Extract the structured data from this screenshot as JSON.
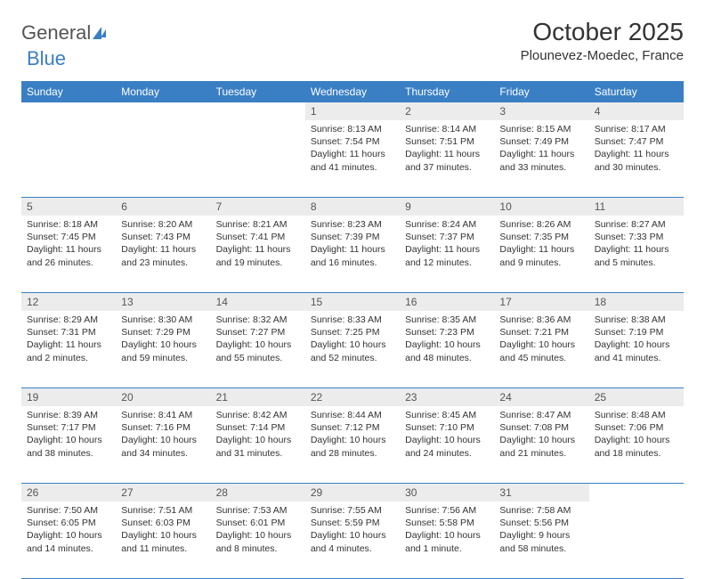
{
  "brand": {
    "part1": "General",
    "part2": "Blue"
  },
  "title": "October 2025",
  "location": "Plounevez-Moedec, France",
  "weekdays": [
    "Sunday",
    "Monday",
    "Tuesday",
    "Wednesday",
    "Thursday",
    "Friday",
    "Saturday"
  ],
  "colors": {
    "header_bg": "#3a7fc4",
    "header_text": "#ffffff",
    "daynum_bg": "#ececec",
    "border": "#3a7fc4",
    "body_text": "#333333"
  },
  "weeks": [
    {
      "daynums": [
        "",
        "",
        "",
        "1",
        "2",
        "3",
        "4"
      ],
      "cells": [
        {
          "sunrise": "",
          "sunset": "",
          "daylight": ""
        },
        {
          "sunrise": "",
          "sunset": "",
          "daylight": ""
        },
        {
          "sunrise": "",
          "sunset": "",
          "daylight": ""
        },
        {
          "sunrise": "Sunrise: 8:13 AM",
          "sunset": "Sunset: 7:54 PM",
          "daylight": "Daylight: 11 hours and 41 minutes."
        },
        {
          "sunrise": "Sunrise: 8:14 AM",
          "sunset": "Sunset: 7:51 PM",
          "daylight": "Daylight: 11 hours and 37 minutes."
        },
        {
          "sunrise": "Sunrise: 8:15 AM",
          "sunset": "Sunset: 7:49 PM",
          "daylight": "Daylight: 11 hours and 33 minutes."
        },
        {
          "sunrise": "Sunrise: 8:17 AM",
          "sunset": "Sunset: 7:47 PM",
          "daylight": "Daylight: 11 hours and 30 minutes."
        }
      ]
    },
    {
      "daynums": [
        "5",
        "6",
        "7",
        "8",
        "9",
        "10",
        "11"
      ],
      "cells": [
        {
          "sunrise": "Sunrise: 8:18 AM",
          "sunset": "Sunset: 7:45 PM",
          "daylight": "Daylight: 11 hours and 26 minutes."
        },
        {
          "sunrise": "Sunrise: 8:20 AM",
          "sunset": "Sunset: 7:43 PM",
          "daylight": "Daylight: 11 hours and 23 minutes."
        },
        {
          "sunrise": "Sunrise: 8:21 AM",
          "sunset": "Sunset: 7:41 PM",
          "daylight": "Daylight: 11 hours and 19 minutes."
        },
        {
          "sunrise": "Sunrise: 8:23 AM",
          "sunset": "Sunset: 7:39 PM",
          "daylight": "Daylight: 11 hours and 16 minutes."
        },
        {
          "sunrise": "Sunrise: 8:24 AM",
          "sunset": "Sunset: 7:37 PM",
          "daylight": "Daylight: 11 hours and 12 minutes."
        },
        {
          "sunrise": "Sunrise: 8:26 AM",
          "sunset": "Sunset: 7:35 PM",
          "daylight": "Daylight: 11 hours and 9 minutes."
        },
        {
          "sunrise": "Sunrise: 8:27 AM",
          "sunset": "Sunset: 7:33 PM",
          "daylight": "Daylight: 11 hours and 5 minutes."
        }
      ]
    },
    {
      "daynums": [
        "12",
        "13",
        "14",
        "15",
        "16",
        "17",
        "18"
      ],
      "cells": [
        {
          "sunrise": "Sunrise: 8:29 AM",
          "sunset": "Sunset: 7:31 PM",
          "daylight": "Daylight: 11 hours and 2 minutes."
        },
        {
          "sunrise": "Sunrise: 8:30 AM",
          "sunset": "Sunset: 7:29 PM",
          "daylight": "Daylight: 10 hours and 59 minutes."
        },
        {
          "sunrise": "Sunrise: 8:32 AM",
          "sunset": "Sunset: 7:27 PM",
          "daylight": "Daylight: 10 hours and 55 minutes."
        },
        {
          "sunrise": "Sunrise: 8:33 AM",
          "sunset": "Sunset: 7:25 PM",
          "daylight": "Daylight: 10 hours and 52 minutes."
        },
        {
          "sunrise": "Sunrise: 8:35 AM",
          "sunset": "Sunset: 7:23 PM",
          "daylight": "Daylight: 10 hours and 48 minutes."
        },
        {
          "sunrise": "Sunrise: 8:36 AM",
          "sunset": "Sunset: 7:21 PM",
          "daylight": "Daylight: 10 hours and 45 minutes."
        },
        {
          "sunrise": "Sunrise: 8:38 AM",
          "sunset": "Sunset: 7:19 PM",
          "daylight": "Daylight: 10 hours and 41 minutes."
        }
      ]
    },
    {
      "daynums": [
        "19",
        "20",
        "21",
        "22",
        "23",
        "24",
        "25"
      ],
      "cells": [
        {
          "sunrise": "Sunrise: 8:39 AM",
          "sunset": "Sunset: 7:17 PM",
          "daylight": "Daylight: 10 hours and 38 minutes."
        },
        {
          "sunrise": "Sunrise: 8:41 AM",
          "sunset": "Sunset: 7:16 PM",
          "daylight": "Daylight: 10 hours and 34 minutes."
        },
        {
          "sunrise": "Sunrise: 8:42 AM",
          "sunset": "Sunset: 7:14 PM",
          "daylight": "Daylight: 10 hours and 31 minutes."
        },
        {
          "sunrise": "Sunrise: 8:44 AM",
          "sunset": "Sunset: 7:12 PM",
          "daylight": "Daylight: 10 hours and 28 minutes."
        },
        {
          "sunrise": "Sunrise: 8:45 AM",
          "sunset": "Sunset: 7:10 PM",
          "daylight": "Daylight: 10 hours and 24 minutes."
        },
        {
          "sunrise": "Sunrise: 8:47 AM",
          "sunset": "Sunset: 7:08 PM",
          "daylight": "Daylight: 10 hours and 21 minutes."
        },
        {
          "sunrise": "Sunrise: 8:48 AM",
          "sunset": "Sunset: 7:06 PM",
          "daylight": "Daylight: 10 hours and 18 minutes."
        }
      ]
    },
    {
      "daynums": [
        "26",
        "27",
        "28",
        "29",
        "30",
        "31",
        ""
      ],
      "cells": [
        {
          "sunrise": "Sunrise: 7:50 AM",
          "sunset": "Sunset: 6:05 PM",
          "daylight": "Daylight: 10 hours and 14 minutes."
        },
        {
          "sunrise": "Sunrise: 7:51 AM",
          "sunset": "Sunset: 6:03 PM",
          "daylight": "Daylight: 10 hours and 11 minutes."
        },
        {
          "sunrise": "Sunrise: 7:53 AM",
          "sunset": "Sunset: 6:01 PM",
          "daylight": "Daylight: 10 hours and 8 minutes."
        },
        {
          "sunrise": "Sunrise: 7:55 AM",
          "sunset": "Sunset: 5:59 PM",
          "daylight": "Daylight: 10 hours and 4 minutes."
        },
        {
          "sunrise": "Sunrise: 7:56 AM",
          "sunset": "Sunset: 5:58 PM",
          "daylight": "Daylight: 10 hours and 1 minute."
        },
        {
          "sunrise": "Sunrise: 7:58 AM",
          "sunset": "Sunset: 5:56 PM",
          "daylight": "Daylight: 9 hours and 58 minutes."
        },
        {
          "sunrise": "",
          "sunset": "",
          "daylight": ""
        }
      ]
    }
  ]
}
